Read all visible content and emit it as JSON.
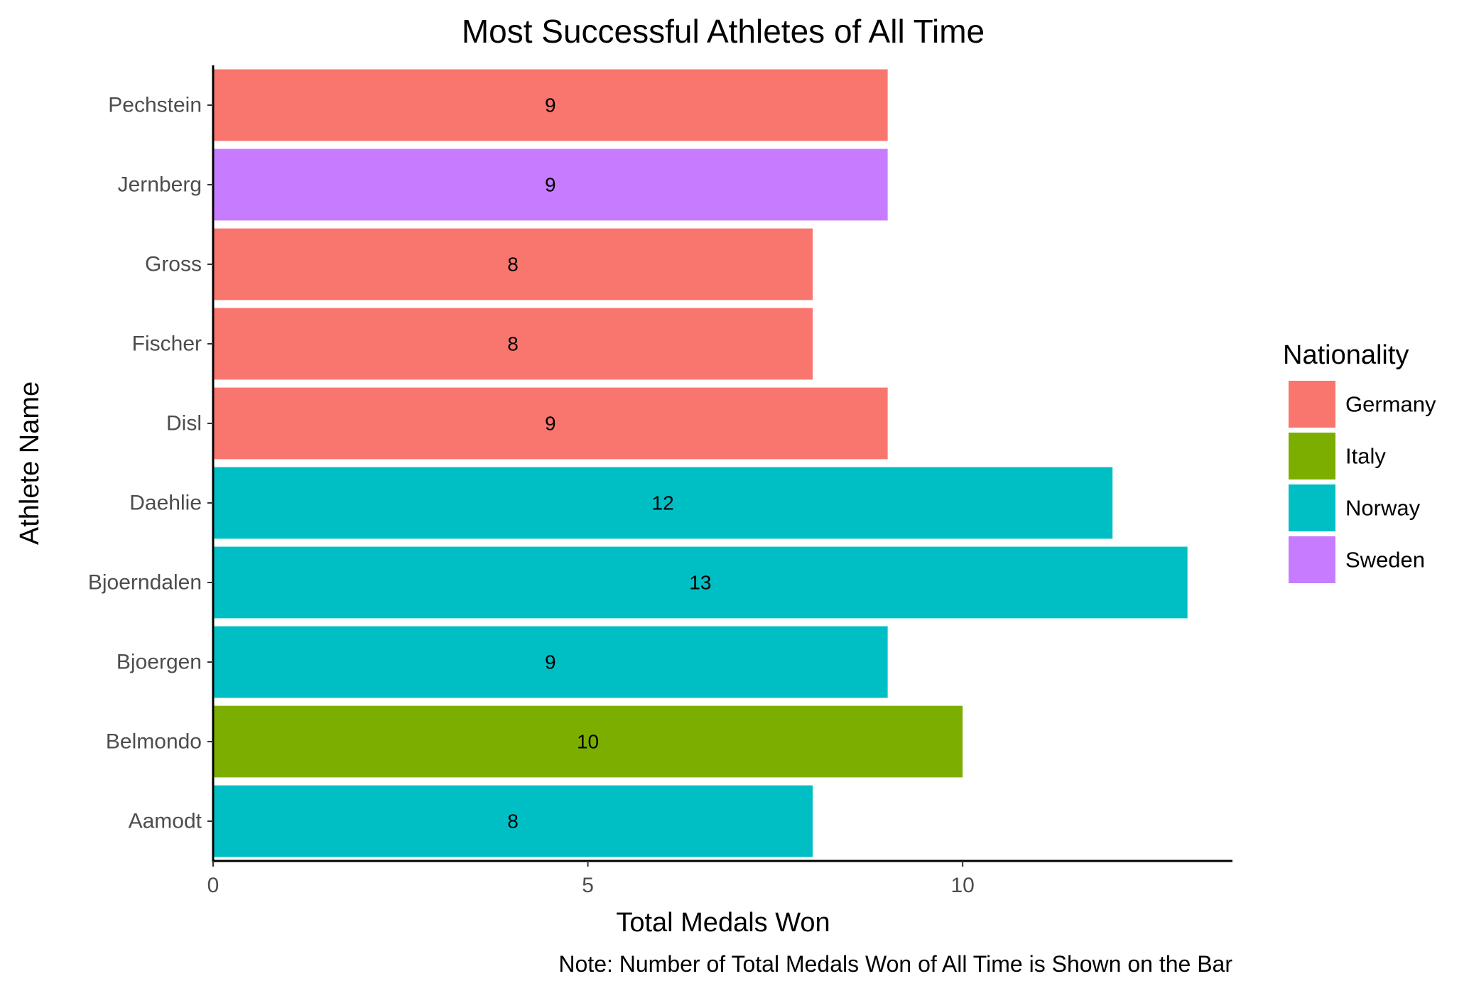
{
  "chart_data": {
    "type": "bar",
    "orientation": "horizontal",
    "title": "Most Successful Athletes of All Time",
    "xlabel": "Total Medals Won",
    "ylabel": "Athlete Name",
    "caption": "Note: Number of Total Medals Won of All Time is Shown on the Bar",
    "xlim": [
      0,
      13.6
    ],
    "xticks": [
      0,
      5,
      10
    ],
    "grid": false,
    "legend": {
      "title": "Nationality",
      "placement": "right",
      "entries": [
        {
          "label": "Germany",
          "color": "#F8766D"
        },
        {
          "label": "Italy",
          "color": "#7CAE00"
        },
        {
          "label": "Norway",
          "color": "#00BFC4"
        },
        {
          "label": "Sweden",
          "color": "#C77CFF"
        }
      ]
    },
    "categories": [
      "Aamodt",
      "Belmondo",
      "Bjoergen",
      "Bjoerndalen",
      "Daehlie",
      "Disl",
      "Fischer",
      "Gross",
      "Jernberg",
      "Pechstein"
    ],
    "values": [
      8,
      10,
      9,
      13,
      12,
      9,
      8,
      8,
      9,
      9
    ],
    "nationality": [
      "Norway",
      "Italy",
      "Norway",
      "Norway",
      "Norway",
      "Germany",
      "Germany",
      "Germany",
      "Sweden",
      "Germany"
    ]
  }
}
